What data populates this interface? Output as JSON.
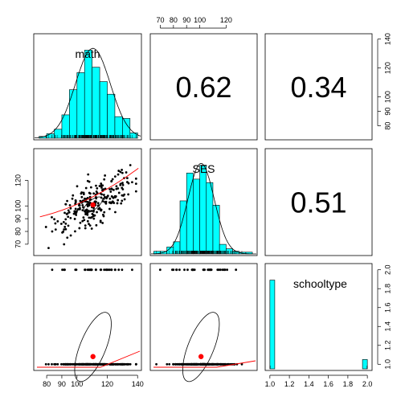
{
  "chart_data": {
    "type": "scatter-matrix",
    "variables": [
      "math",
      "SES",
      "schooltype"
    ],
    "correlations": [
      {
        "row": 0,
        "col": 1,
        "label": "0.62"
      },
      {
        "row": 0,
        "col": 2,
        "label": "0.34"
      },
      {
        "row": 1,
        "col": 2,
        "label": "0.51"
      }
    ],
    "axes": {
      "math": {
        "range": [
          72,
          142
        ],
        "ticks": [
          80,
          90,
          100,
          120,
          140
        ]
      },
      "SES": {
        "range": [
          63,
          143
        ],
        "ticks": [
          70,
          80,
          90,
          100,
          120
        ]
      },
      "SES_left": {
        "ticks": [
          70,
          80,
          90,
          100,
          120
        ]
      },
      "SES_right": {
        "ticks": [
          80,
          90,
          100,
          120,
          140
        ]
      },
      "schooltype": {
        "range": [
          0.96,
          2.04
        ],
        "ticks": [
          1.0,
          1.2,
          1.4,
          1.6,
          1.8,
          2.0
        ]
      }
    },
    "histograms": {
      "math": {
        "breaks": [
          75,
          80,
          85,
          90,
          95,
          100,
          105,
          110,
          115,
          120,
          125,
          130,
          135,
          140
        ],
        "density": [
          0.2,
          0.5,
          1.0,
          2.6,
          5.4,
          7.3,
          9.8,
          7.9,
          6.3,
          4.9,
          2.4,
          2.2,
          0.6
        ]
      },
      "SES": {
        "breaks": [
          65,
          70,
          75,
          80,
          85,
          90,
          95,
          100,
          105,
          110,
          115,
          120,
          125,
          130,
          135,
          140
        ],
        "density": [
          0.3,
          0.3,
          0.8,
          1.4,
          6.1,
          9.3,
          8.6,
          10.2,
          8.2,
          5.6,
          1.1,
          0.6,
          0.3,
          0.2,
          0.2
        ]
      },
      "schooltype": {
        "breaks": [
          1.0,
          1.05,
          1.1,
          1.15,
          1.2,
          1.25,
          1.3,
          1.35,
          1.4,
          1.45,
          1.5,
          1.55,
          1.6,
          1.65,
          1.7,
          1.75,
          1.8,
          1.85,
          1.9,
          1.95,
          2.0
        ],
        "density": [
          10,
          0,
          0,
          0,
          0,
          0,
          0,
          0,
          0,
          0,
          0,
          0,
          0,
          0,
          0,
          0,
          0,
          0,
          0,
          1.05
        ]
      }
    },
    "means": {
      "math": 110.5,
      "SES": 101,
      "schooltype": 1.1
    },
    "scatter_points": 250,
    "colors": {
      "histogram_fill": "#00FFFF",
      "mean_point": "#FF0000",
      "loess": "#FF0000",
      "points": "#000000"
    }
  }
}
